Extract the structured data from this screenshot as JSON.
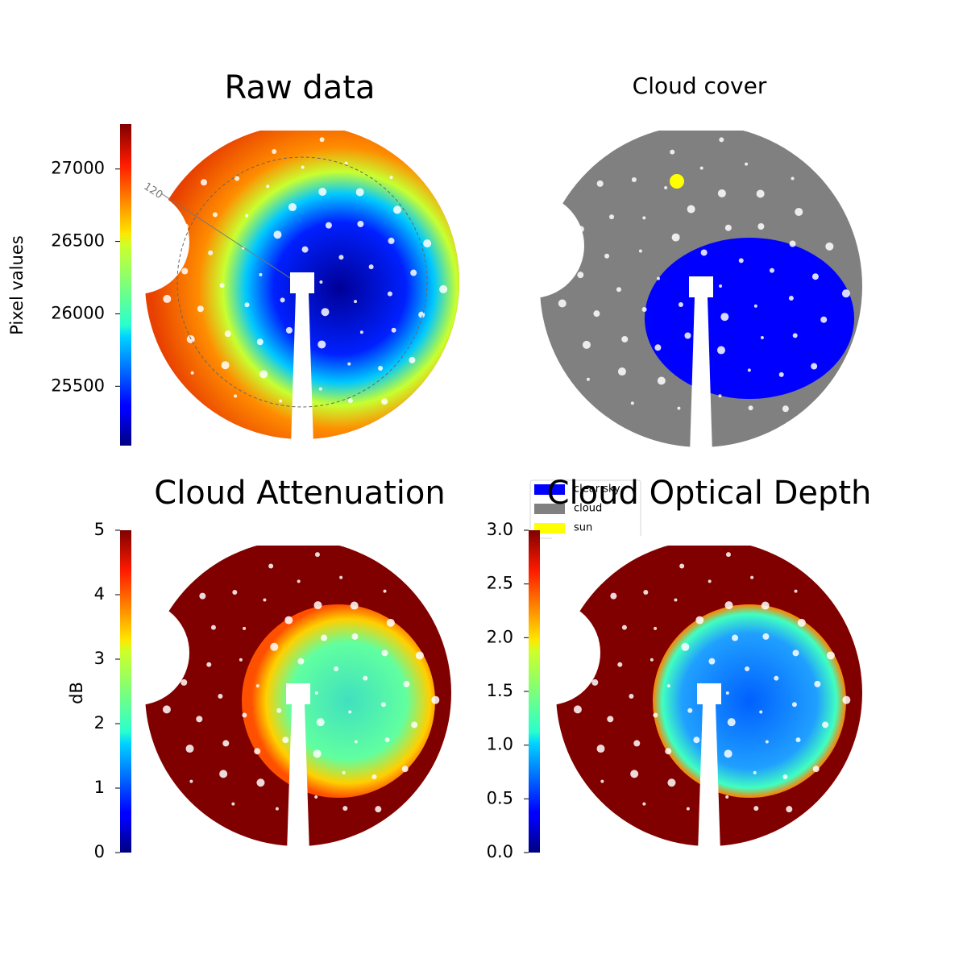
{
  "chart_data": [
    {
      "type": "image",
      "title": "Raw data",
      "colorbar_label": "Pixel values",
      "colormap": "jet",
      "clim": [
        25090,
        27310
      ],
      "cticks": [
        25500,
        26000,
        26500,
        27000
      ],
      "annotations": [
        "120"
      ]
    },
    {
      "type": "image",
      "title": "Cloud cover",
      "series": [
        {
          "name": "clear sky",
          "color": "#0000ff"
        },
        {
          "name": "cloud",
          "color": "#808080"
        },
        {
          "name": "sun",
          "color": "#ffff00"
        }
      ]
    },
    {
      "type": "image",
      "title": "Cloud Attenuation",
      "colorbar_label": "dB",
      "colormap": "jet",
      "clim": [
        0,
        5
      ],
      "cticks": [
        0,
        1,
        2,
        3,
        4,
        5
      ]
    },
    {
      "type": "image",
      "title": "Cloud Optical Depth",
      "colormap": "jet",
      "clim": [
        0,
        3
      ],
      "cticks": [
        {
          "value": 0,
          "label": "0.0"
        },
        0.5,
        {
          "value": 1,
          "label": "1.0"
        },
        1.5,
        {
          "value": 2,
          "label": "2.0"
        },
        2.5,
        {
          "value": 3,
          "label": "3.0"
        }
      ]
    }
  ]
}
